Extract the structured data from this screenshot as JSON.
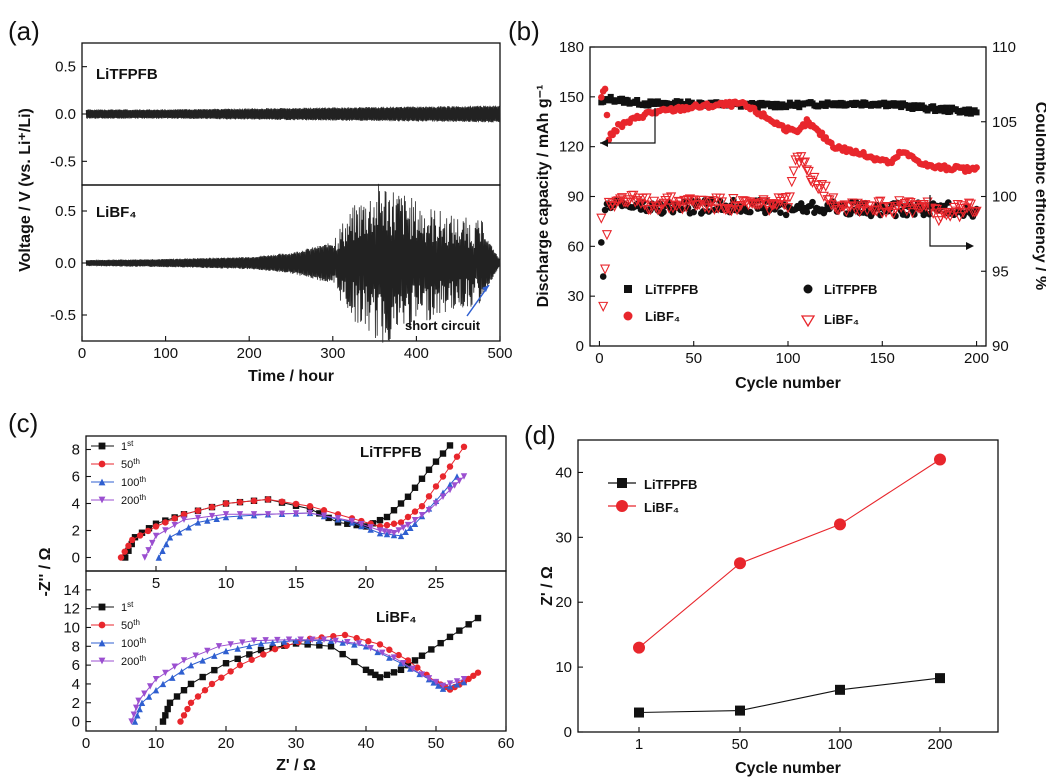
{
  "chart_data": [
    {
      "panel": "(a)",
      "type": "line",
      "xlabel": "Time / hour",
      "ylabel": "Voltage / V (vs. Li⁺/Li)",
      "xlim": [
        0,
        500
      ],
      "xticks": [
        "0",
        "100",
        "200",
        "300",
        "400",
        "500"
      ],
      "subplots": [
        {
          "label": "LiTFPFB",
          "ylim": [
            -0.75,
            0.75
          ],
          "yticks": [
            "-0.5",
            "0.0",
            "0.5"
          ],
          "envelope": {
            "x": [
              0,
              100,
              200,
              300,
              400,
              500
            ],
            "amplitude": [
              0.05,
              0.05,
              0.06,
              0.07,
              0.08,
              0.09
            ]
          }
        },
        {
          "label": "LiBF₄",
          "ylim": [
            -0.75,
            0.75
          ],
          "yticks": [
            "-0.5",
            "0.0",
            "0.5"
          ],
          "envelope": {
            "x": [
              0,
              100,
              200,
              250,
              300,
              330,
              360,
              400,
              440,
              480,
              500
            ],
            "amplitude": [
              0.03,
              0.04,
              0.06,
              0.1,
              0.2,
              0.45,
              0.6,
              0.45,
              0.35,
              0.3,
              0.03
            ]
          }
        }
      ],
      "annotations": [
        "short circuit"
      ]
    },
    {
      "panel": "(b)",
      "type": "scatter",
      "xlabel": "Cycle number",
      "ylabel": "Discharge capacity / mAh g⁻¹",
      "y2label": "Coulombic efficiency / %",
      "xlim": [
        -5,
        205
      ],
      "ylim": [
        0,
        180
      ],
      "y2lim": [
        90,
        110
      ],
      "xticks": [
        "0",
        "50",
        "100",
        "150",
        "200"
      ],
      "yticks": [
        "0",
        "30",
        "60",
        "90",
        "120",
        "150",
        "180"
      ],
      "y2ticks": [
        "90",
        "95",
        "100",
        "105",
        "110"
      ],
      "legend": [
        "LiTFPFB",
        "LiBF₄",
        "LiTFPFB",
        "LiBF₄"
      ],
      "series": [
        {
          "name": "LiTFPFB",
          "axis": "left",
          "marker": "square",
          "color": "#111111",
          "x": [
            1,
            5,
            10,
            25,
            50,
            75,
            100,
            125,
            150,
            175,
            200
          ],
          "y": [
            146,
            149,
            148,
            146,
            146,
            145,
            145,
            146,
            146,
            143,
            141
          ]
        },
        {
          "name": "LiBF₄",
          "axis": "left",
          "marker": "circle",
          "color": "#e8262c",
          "x": [
            1,
            3,
            5,
            10,
            25,
            50,
            75,
            85,
            100,
            105,
            110,
            125,
            150,
            155,
            160,
            175,
            200
          ],
          "y": [
            150,
            155,
            125,
            132,
            140,
            144,
            146,
            140,
            130,
            128,
            135,
            120,
            112,
            110,
            117,
            108,
            106
          ]
        },
        {
          "name": "LiTFPFB",
          "axis": "right",
          "marker": "circle",
          "color": "#111111",
          "x": [
            1,
            2,
            3,
            5,
            10,
            25,
            50,
            75,
            100,
            125,
            150,
            175,
            200
          ],
          "y": [
            97.3,
            94.2,
            98.7,
            99.7,
            99.5,
            99.2,
            99.3,
            99.4,
            99.2,
            99.3,
            99.1,
            99.2,
            99.1
          ]
        },
        {
          "name": "LiBF₄",
          "axis": "right",
          "marker": "triangle-down-open",
          "color": "#e8262c",
          "x": [
            1,
            2,
            5,
            10,
            25,
            50,
            75,
            100,
            105,
            125,
            150,
            175,
            180,
            200
          ],
          "y": [
            98.3,
            92.9,
            99.7,
            99.8,
            99.5,
            99.6,
            99.4,
            99.5,
            102.6,
            99.5,
            99.3,
            99.2,
            98.8,
            99.3
          ]
        }
      ]
    },
    {
      "panel": "(c)",
      "type": "line",
      "xlabel": "Z' / Ω",
      "ylabel": "-Z'' / Ω",
      "xlim": [
        0,
        60
      ],
      "xticks": [
        "0",
        "10",
        "20",
        "30",
        "40",
        "50",
        "60"
      ],
      "subplots": [
        {
          "label": "LiTFPFB",
          "xlim": [
            0,
            30
          ],
          "xticks": [
            "5",
            "10",
            "15",
            "20",
            "25"
          ],
          "ylim": [
            -1,
            9
          ],
          "yticks": [
            "0",
            "2",
            "4",
            "6",
            "8"
          ],
          "legend": [
            "1st",
            "50th",
            "100th",
            "200th"
          ],
          "series": [
            {
              "name": "1st",
              "color": "#111111",
              "marker": "square",
              "x": [
                2.8,
                3.5,
                5,
                7,
                10,
                13,
                16,
                18,
                20,
                21.5,
                23,
                24.5,
                26
              ],
              "y": [
                0,
                1.5,
                2.5,
                3.2,
                4.0,
                4.3,
                3.6,
                2.6,
                2.3,
                3.0,
                4.5,
                6.5,
                8.3
              ]
            },
            {
              "name": "50th",
              "color": "#e8262c",
              "marker": "circle",
              "x": [
                2.5,
                3.3,
                5,
                7,
                10,
                13,
                16,
                19,
                21,
                22.5,
                24,
                25.5,
                27
              ],
              "y": [
                0,
                1.3,
                2.3,
                3.2,
                4.0,
                4.3,
                3.8,
                2.9,
                2.3,
                2.6,
                3.8,
                6.0,
                8.2
              ]
            },
            {
              "name": "100th",
              "color": "#2f5fd0",
              "marker": "triangle-up",
              "x": [
                5.2,
                6,
                8,
                10,
                13,
                16,
                19,
                21,
                22.5,
                23.5,
                25,
                26.5
              ],
              "y": [
                0,
                1.5,
                2.6,
                3.0,
                3.2,
                3.3,
                2.6,
                1.8,
                1.6,
                2.5,
                4.2,
                6.0
              ]
            },
            {
              "name": "200th",
              "color": "#9b4fd0",
              "marker": "triangle-down",
              "x": [
                4.2,
                5,
                7,
                10,
                13,
                16,
                19,
                21,
                22,
                23,
                24.5,
                26,
                27
              ],
              "y": [
                0,
                1.6,
                2.8,
                3.2,
                3.2,
                3.3,
                2.7,
                2.0,
                1.8,
                2.4,
                3.5,
                5.0,
                6.0
              ]
            }
          ]
        },
        {
          "label": "LiBF₄",
          "xlim": [
            0,
            60
          ],
          "ylim": [
            -1,
            16
          ],
          "yticks": [
            "0",
            "2",
            "4",
            "6",
            "8",
            "10",
            "12",
            "14"
          ],
          "legend": [
            "1st",
            "50th",
            "100th",
            "200th"
          ],
          "series": [
            {
              "name": "1st",
              "color": "#111111",
              "marker": "square",
              "x": [
                11,
                12,
                15,
                20,
                25,
                30,
                35,
                40,
                42,
                45,
                48,
                52,
                56
              ],
              "y": [
                0,
                2.0,
                4.0,
                6.2,
                7.6,
                8.3,
                8.0,
                5.5,
                4.7,
                5.5,
                7.0,
                9.0,
                11.0
              ]
            },
            {
              "name": "50th",
              "color": "#e8262c",
              "marker": "circle",
              "x": [
                13.5,
                15,
                18,
                22,
                27,
                32,
                37,
                42,
                46,
                50,
                52,
                54,
                56
              ],
              "y": [
                0,
                2.0,
                4.0,
                6.0,
                7.7,
                8.8,
                9.2,
                8.2,
                6.5,
                4.2,
                3.4,
                4.2,
                5.2
              ]
            },
            {
              "name": "100th",
              "color": "#2f5fd0",
              "marker": "triangle-up",
              "x": [
                7,
                8,
                11,
                15,
                20,
                25,
                30,
                35,
                40,
                45,
                49,
                51,
                54
              ],
              "y": [
                0,
                2.0,
                4.0,
                6.0,
                7.5,
                8.3,
                8.6,
                8.6,
                8.0,
                6.2,
                4.5,
                3.5,
                4.2
              ]
            },
            {
              "name": "200th",
              "color": "#9b4fd0",
              "marker": "triangle-down",
              "x": [
                6.5,
                7.5,
                10,
                14,
                19,
                24,
                29,
                34,
                39,
                44,
                48,
                51,
                54
              ],
              "y": [
                0,
                2.2,
                4.5,
                6.5,
                8.0,
                8.6,
                8.7,
                8.7,
                8.3,
                6.8,
                5.0,
                3.8,
                4.5
              ]
            }
          ]
        }
      ]
    },
    {
      "panel": "(d)",
      "type": "line",
      "xlabel": "Cycle number",
      "ylabel": "Z' / Ω",
      "categories": [
        "1",
        "50",
        "100",
        "200"
      ],
      "ylim": [
        0,
        45
      ],
      "yticks": [
        "0",
        "10",
        "20",
        "30",
        "40"
      ],
      "legend": [
        "LiTFPFB",
        "LiBF₄"
      ],
      "series": [
        {
          "name": "LiTFPFB",
          "color": "#111111",
          "marker": "square",
          "values": [
            3.0,
            3.3,
            6.5,
            8.3
          ]
        },
        {
          "name": "LiBF₄",
          "color": "#e8262c",
          "marker": "circle",
          "values": [
            13.0,
            26.0,
            32.0,
            42.0
          ]
        }
      ]
    }
  ]
}
